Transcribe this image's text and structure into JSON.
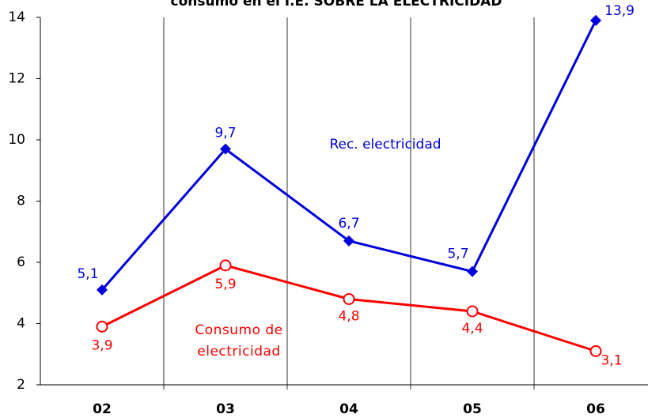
{
  "chart_data": {
    "type": "line",
    "title": "consumo en el I.E. SOBRE LA ELECTRICIDAD",
    "categories": [
      "02",
      "03",
      "04",
      "05",
      "06"
    ],
    "series": [
      {
        "name": "Rec. electricidad",
        "color": "#0000dd",
        "marker": "diamond",
        "values": [
          5.1,
          9.7,
          6.7,
          5.7,
          13.9
        ],
        "value_labels": [
          "5,1",
          "9,7",
          "6,7",
          "5,7",
          "13,9"
        ]
      },
      {
        "name": "Consumo de electricidad",
        "color": "#ff0000",
        "marker": "circle",
        "values": [
          3.9,
          5.9,
          4.8,
          4.4,
          3.1
        ],
        "value_labels": [
          "3,9",
          "5,9",
          "4,8",
          "4,4",
          "3,1"
        ]
      }
    ],
    "ylim": [
      2,
      14
    ],
    "yticks": [
      2,
      4,
      6,
      8,
      10,
      12,
      14
    ],
    "grid": false
  }
}
